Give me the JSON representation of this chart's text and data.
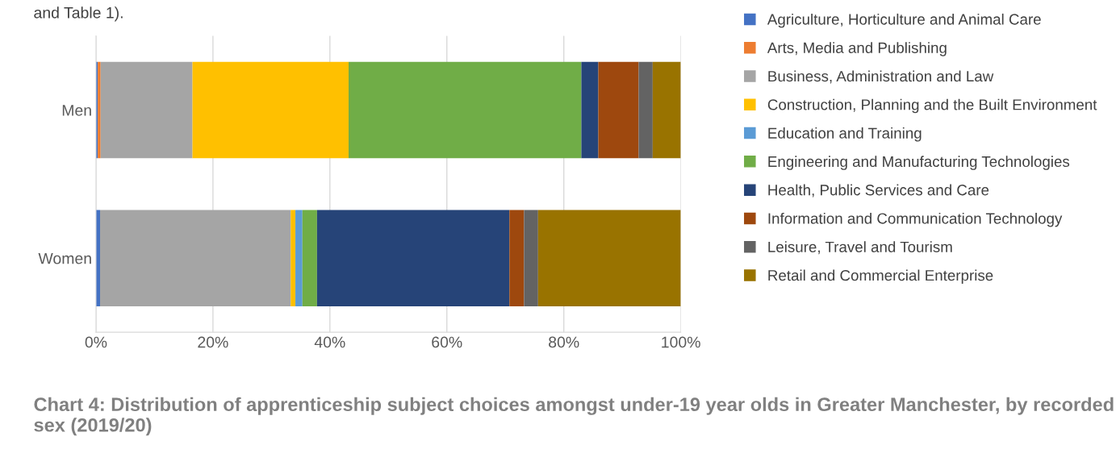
{
  "chart_data": {
    "type": "bar",
    "orientation": "horizontal",
    "stacked": true,
    "title": "Chart 4: Distribution of apprenticeship subject choices amongst under-19 year olds in Greater Manchester, by recorded sex (2019/20)",
    "annotations": [
      "and Table 1)."
    ],
    "categories": [
      "Men",
      "Women"
    ],
    "series": [
      {
        "name": "Agriculture, Horticulture and Animal Care",
        "color": "#4472c4",
        "values": [
          0.3,
          0.7
        ]
      },
      {
        "name": "Arts, Media and Publishing",
        "color": "#ed7d31",
        "values": [
          0.5,
          0
        ]
      },
      {
        "name": "Business, Administration and Law",
        "color": "#a5a5a5",
        "values": [
          15.7,
          32.6
        ]
      },
      {
        "name": "Construction, Planning and the Built Environment",
        "color": "#ffc000",
        "values": [
          26.7,
          0.8
        ]
      },
      {
        "name": "Education and Training",
        "color": "#5b9bd5",
        "values": [
          0,
          1.2
        ]
      },
      {
        "name": "Engineering and Manufacturing Technologies",
        "color": "#70ad47",
        "values": [
          39.8,
          2.5
        ]
      },
      {
        "name": "Health, Public Services and Care",
        "color": "#264478",
        "values": [
          2.9,
          32.9
        ]
      },
      {
        "name": "Information and Communication Technology",
        "color": "#9e480e",
        "values": [
          6.9,
          2.5
        ]
      },
      {
        "name": "Leisure, Travel and Tourism",
        "color": "#636363",
        "values": [
          2.4,
          2.4
        ]
      },
      {
        "name": "Retail and Commercial Enterprise",
        "color": "#997300",
        "values": [
          4.8,
          24.4
        ]
      }
    ],
    "xlim": [
      0,
      100
    ],
    "xticks": [
      {
        "value": 0,
        "label": "0%"
      },
      {
        "value": 20,
        "label": "20%"
      },
      {
        "value": 40,
        "label": "40%"
      },
      {
        "value": 60,
        "label": "60%"
      },
      {
        "value": 80,
        "label": "80%"
      },
      {
        "value": 100,
        "label": "100%"
      }
    ],
    "grid": "x",
    "legend": "right"
  }
}
